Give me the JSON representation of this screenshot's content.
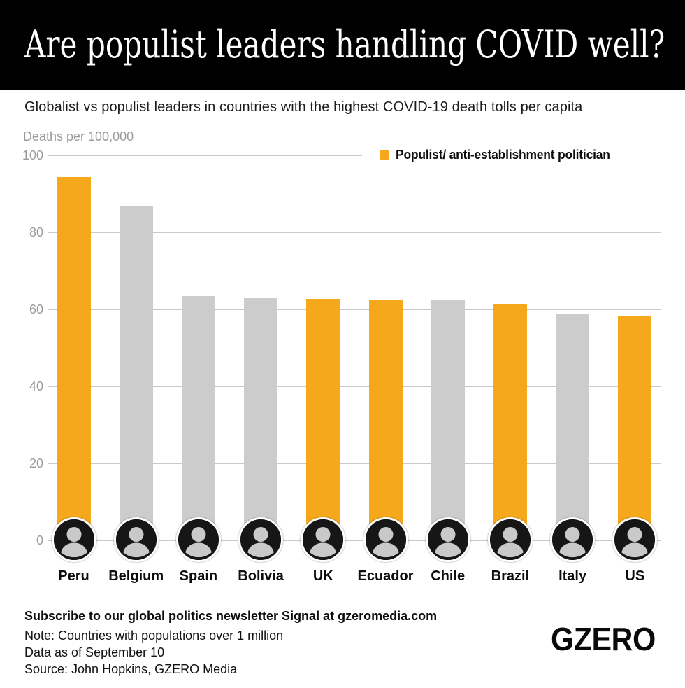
{
  "header": {
    "title": "Are populist leaders handling COVID well?"
  },
  "subtitle": "Globalist vs populist leaders in countries with the highest COVID-19 death tolls per capita",
  "chart_data": {
    "type": "bar",
    "axis_label": "Deaths per 100,000",
    "categories": [
      "Peru",
      "Belgium",
      "Spain",
      "Bolivia",
      "UK",
      "Ecuador",
      "Chile",
      "Brazil",
      "Italy",
      "US"
    ],
    "values": [
      94.3,
      86.8,
      63.5,
      63.0,
      62.8,
      62.6,
      62.4,
      61.4,
      58.9,
      58.4
    ],
    "populist": [
      true,
      false,
      false,
      false,
      true,
      true,
      false,
      true,
      false,
      true
    ],
    "yticks": [
      0,
      20,
      40,
      60,
      80,
      100
    ],
    "ylim": [
      0,
      100
    ],
    "grid": true,
    "legend_position": "top-right",
    "legend": {
      "label": "Populist/ anti-establishment politician",
      "color": "#F5A81B"
    },
    "colors": {
      "populist_bar": "#F5A81B",
      "globalist_bar": "#CCCCCC",
      "gridline": "#C9C9C9",
      "tick_text": "#9B9B9B"
    },
    "photo_style": "grayscale circular leader portraits at bar base"
  },
  "footer": {
    "subscribe": "Subscribe to our global politics newsletter Signal at gzeromedia.com",
    "note": "Note: Countries with populations over 1 million",
    "data_as_of": "Data as of September 10",
    "source": "Source: John Hopkins, GZERO Media",
    "logo": "GZERO"
  }
}
